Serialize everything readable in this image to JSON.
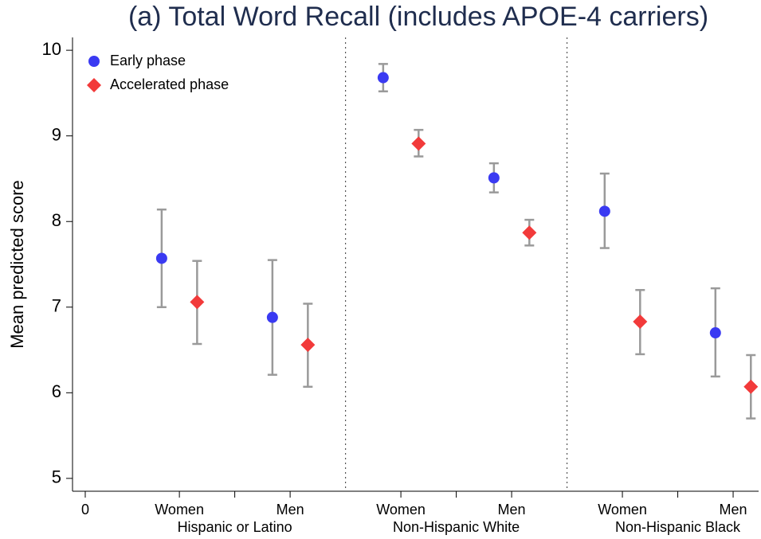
{
  "chart_data": {
    "type": "dot_errorbar",
    "title": "(a) Total Word Recall (includes APOE-4 carriers)",
    "y_label": "Mean predicted score",
    "xlim": [
      -0.23,
      12.16
    ],
    "ylim": [
      4.85,
      10.15
    ],
    "yticks": [
      5,
      6,
      7,
      8,
      9,
      10
    ],
    "xticks": [
      0,
      {
        "value": 1.7,
        "label": "Women"
      },
      {
        "value": 3.7,
        "label": "Men"
      },
      {
        "value": 5.7,
        "label": "Women"
      },
      {
        "value": 7.7,
        "label": "Men"
      },
      {
        "value": 9.7,
        "label": "Women"
      },
      {
        "value": 11.7,
        "label": "Men"
      }
    ],
    "minor_xticks": [
      2.7,
      6.7,
      10.7
    ],
    "groups": [
      {
        "label": "Hispanic or Latino",
        "x": 2.7
      },
      {
        "label": "Non-Hispanic White",
        "x": 6.7
      },
      {
        "label": "Non-Hispanic Black",
        "x": 10.7
      }
    ],
    "dividers": [
      4.7,
      8.7
    ],
    "legend": "top-left",
    "series": [
      {
        "name": "Early phase",
        "color": "#3a3af2",
        "marker": "circle",
        "x": [
          1.38,
          3.38,
          5.38,
          7.38,
          9.38,
          11.38
        ],
        "values": [
          7.57,
          6.88,
          9.68,
          8.51,
          8.12,
          6.7
        ],
        "lower": [
          7.0,
          6.21,
          9.52,
          8.34,
          7.69,
          6.19
        ],
        "upper": [
          8.14,
          7.55,
          9.84,
          8.68,
          8.56,
          7.22
        ]
      },
      {
        "name": "Accelerated phase",
        "color": "#f23a3a",
        "marker": "diamond",
        "x": [
          2.02,
          4.02,
          6.02,
          8.02,
          10.02,
          12.02
        ],
        "values": [
          7.06,
          6.56,
          8.91,
          7.87,
          6.83,
          6.07
        ],
        "lower": [
          6.57,
          6.07,
          8.76,
          7.72,
          6.45,
          5.7
        ],
        "upper": [
          7.54,
          7.04,
          9.07,
          8.02,
          7.2,
          6.44
        ]
      }
    ]
  }
}
